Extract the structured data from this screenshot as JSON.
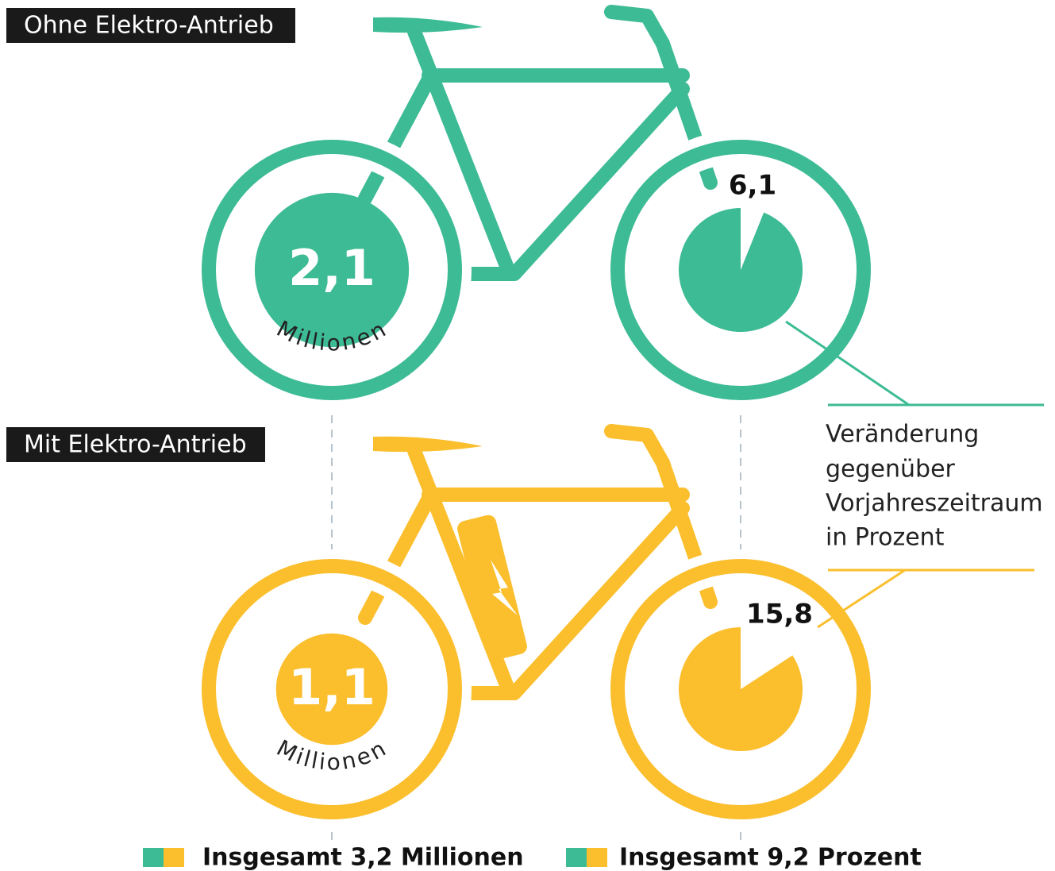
{
  "groups": [
    {
      "label": "Ohne Elektro-Antrieb",
      "color": "#3dbb94",
      "sales": 2.1,
      "sales_label": "2,1",
      "unit": "Millionen",
      "change": 6.1,
      "change_label": "6,1"
    },
    {
      "label": "Mit Elektro-Antrieb",
      "color": "#fbbf2e",
      "sales": 1.1,
      "sales_label": "1,1",
      "unit": "Millionen",
      "change": 15.8,
      "change_label": "15,8"
    }
  ],
  "annotation": [
    "Veränderung",
    "gegenüber",
    "Vorjahreszeitraum",
    "in Prozent"
  ],
  "legend": [
    "Insgesamt 3,2 Millionen",
    "Insgesamt 9,2 Prozent"
  ]
}
